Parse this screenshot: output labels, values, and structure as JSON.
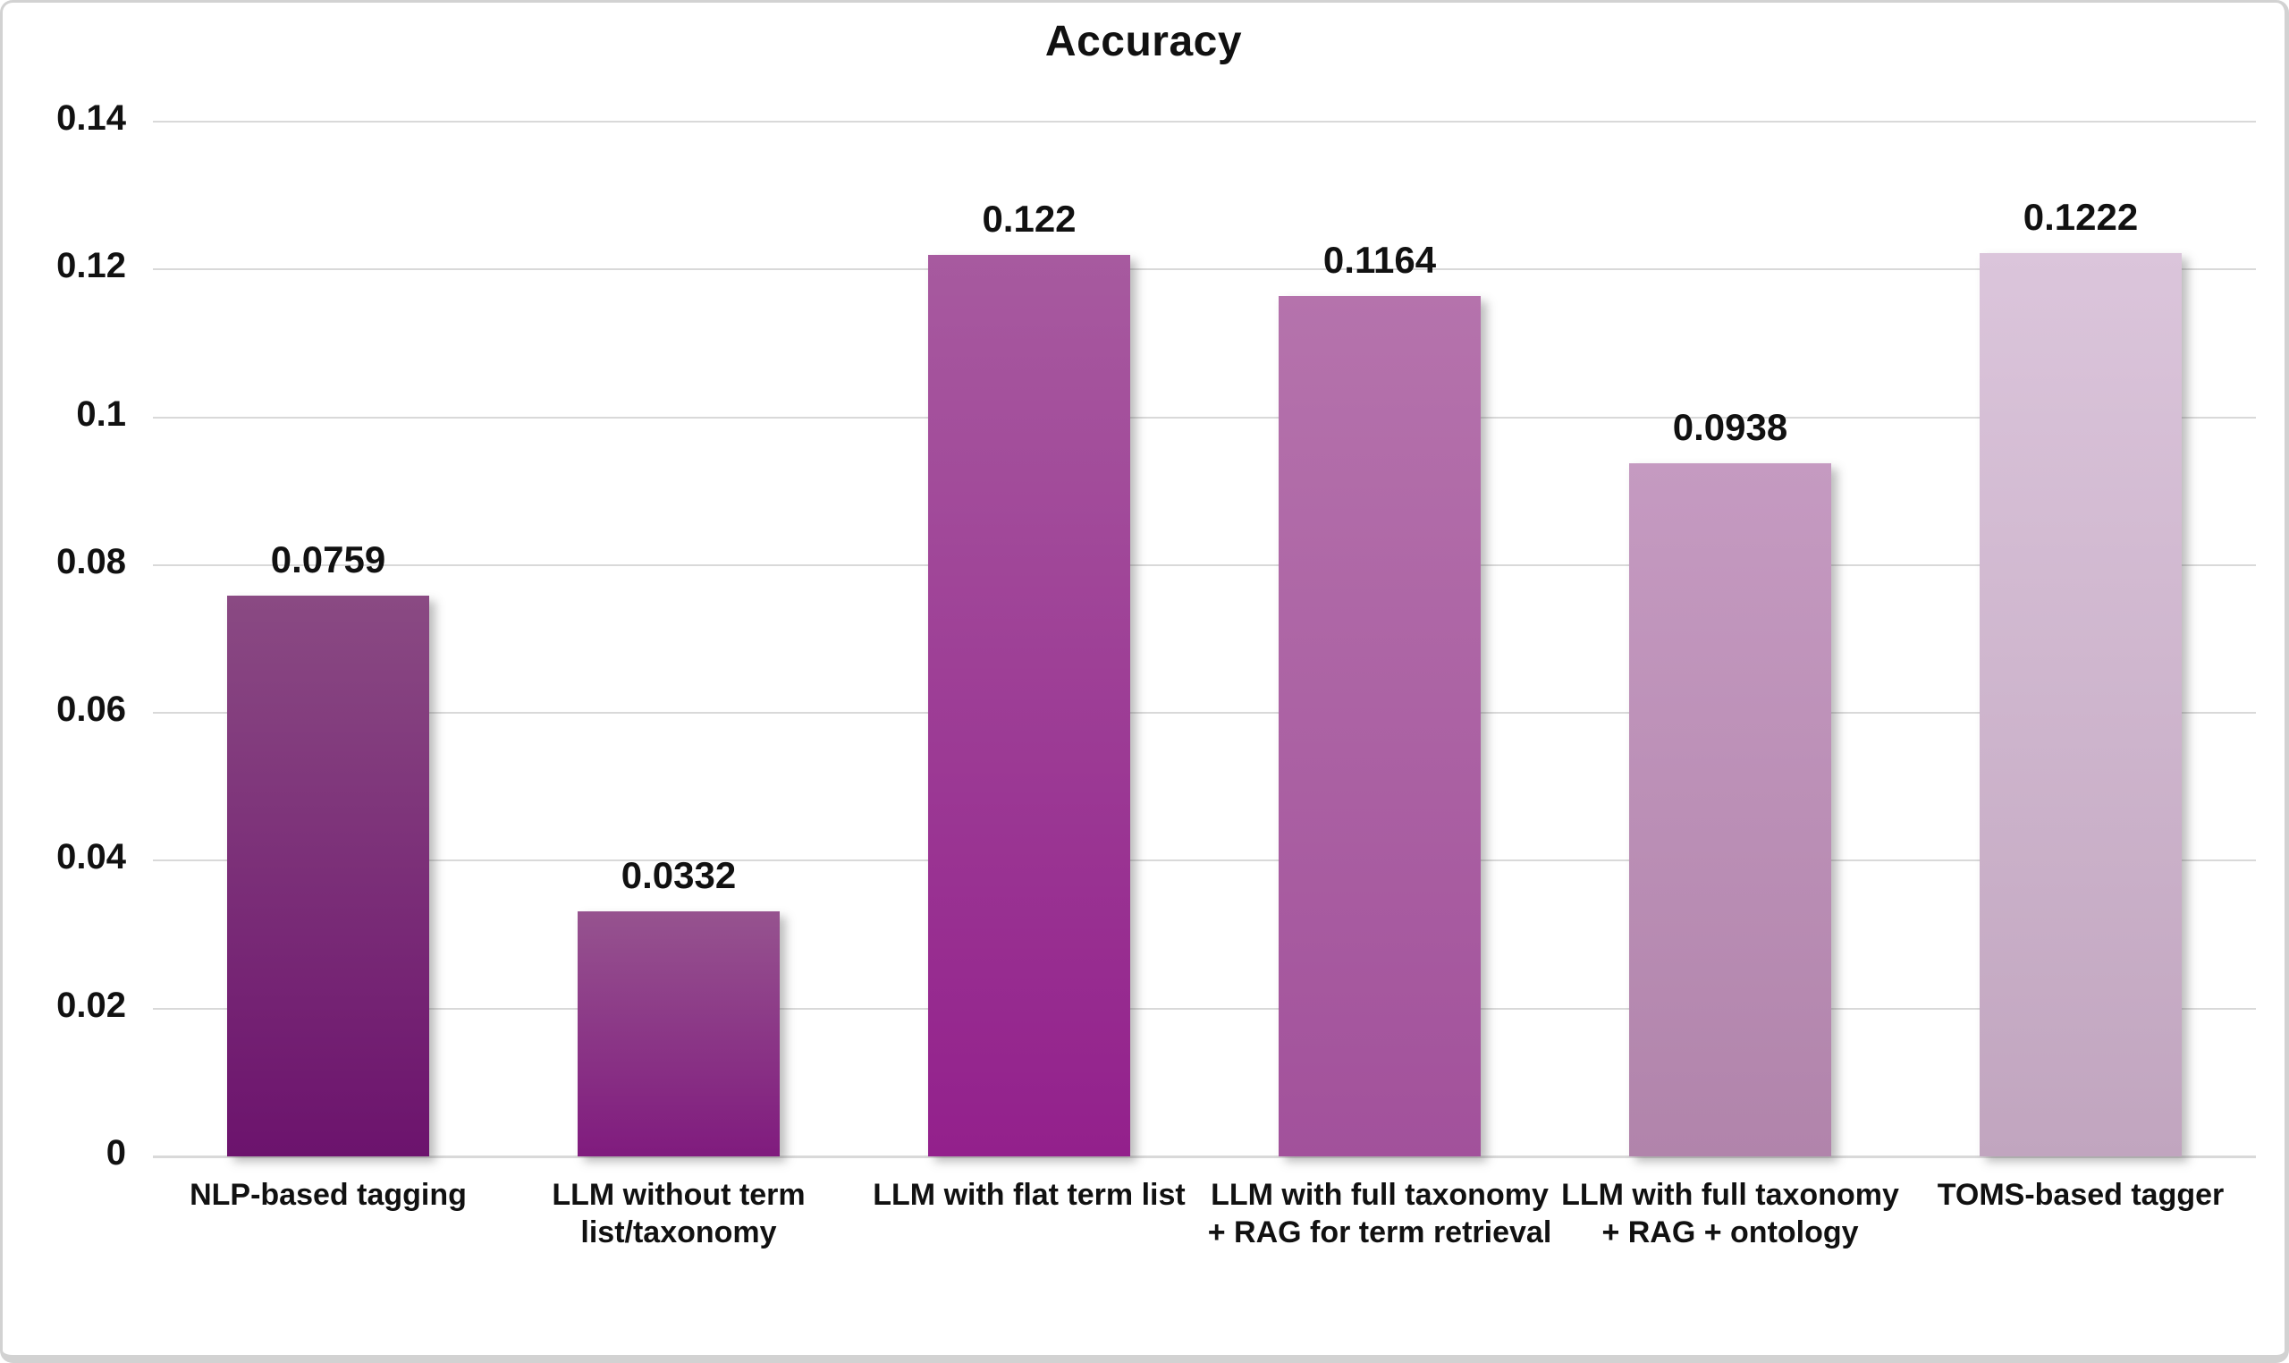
{
  "page": {
    "background": "#ffffff",
    "border_color": "#d2d2d2"
  },
  "chart_data": {
    "type": "bar",
    "title": "Accuracy",
    "xlabel": "",
    "ylabel": "",
    "categories": [
      "NLP-based tagging",
      "LLM without term list/taxonomy",
      "LLM with flat term list",
      "LLM with full taxonomy + RAG for term retrieval",
      "LLM with full taxonomy + RAG + ontology",
      "TOMS-based tagger"
    ],
    "values": [
      0.0759,
      0.0332,
      0.122,
      0.1164,
      0.0938,
      0.1222
    ],
    "value_labels": [
      "0.0759",
      "0.0332",
      "0.122",
      "0.1164",
      "0.0938",
      "0.1222"
    ],
    "ylim": [
      0,
      0.14
    ],
    "yticks": [
      0,
      0.02,
      0.04,
      0.06,
      0.08,
      0.1,
      0.12,
      0.14
    ],
    "ytick_labels": [
      "0",
      "0.02",
      "0.04",
      "0.06",
      "0.08",
      "0.1",
      "0.12",
      "0.14"
    ],
    "grid": "horizontal",
    "legend": "none",
    "text_color": "#111111",
    "gridline_color": "#d9d9d9",
    "bar_gradients": [
      [
        "#8a4a83",
        "#6c136d"
      ],
      [
        "#96538f",
        "#801b7e"
      ],
      [
        "#a75a9f",
        "#93208c"
      ],
      [
        "#b573ac",
        "#a2519b"
      ],
      [
        "#c59ac1",
        "#b184ab"
      ],
      [
        "#dbc5db",
        "#c1a5bf"
      ]
    ]
  }
}
